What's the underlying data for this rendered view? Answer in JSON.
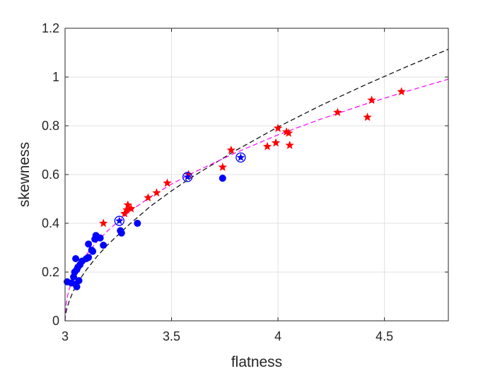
{
  "chart_data": {
    "type": "scatter",
    "title": "",
    "xlabel": "flatness",
    "ylabel": "skewness",
    "xlim": [
      3,
      4.8
    ],
    "ylim": [
      0,
      1.2
    ],
    "x_ticks": [
      3,
      3.5,
      4,
      4.5
    ],
    "x_tick_labels": [
      "3",
      "3.5",
      "4",
      "4.5"
    ],
    "y_ticks": [
      0,
      0.2,
      0.4,
      0.6,
      0.8,
      1,
      1.2
    ],
    "y_tick_labels": [
      "0",
      "0.2",
      "0.4",
      "0.6",
      "0.8",
      "1",
      "1.2"
    ],
    "grid": true,
    "box": true,
    "colors": {
      "circles": "#0000ff",
      "stars": "#ff0000",
      "ringed": "#0000ff",
      "black_curve": "#000000",
      "magenta_curve": "#ff00ff",
      "grid": "#e0e0e0",
      "axes": "#262626"
    },
    "series": [
      {
        "marker": "filled-circle",
        "color": "#0000ff",
        "points": [
          [
            3.01,
            0.16
          ],
          [
            3.03,
            0.155
          ],
          [
            3.04,
            0.18
          ],
          [
            3.045,
            0.2
          ],
          [
            3.05,
            0.15
          ],
          [
            3.055,
            0.14
          ],
          [
            3.055,
            0.21
          ],
          [
            3.05,
            0.255
          ],
          [
            3.06,
            0.22
          ],
          [
            3.065,
            0.165
          ],
          [
            3.07,
            0.23
          ],
          [
            3.08,
            0.245
          ],
          [
            3.1,
            0.255
          ],
          [
            3.11,
            0.26
          ],
          [
            3.11,
            0.315
          ],
          [
            3.125,
            0.29
          ],
          [
            3.13,
            0.285
          ],
          [
            3.14,
            0.335
          ],
          [
            3.145,
            0.35
          ],
          [
            3.15,
            0.345
          ],
          [
            3.165,
            0.34
          ],
          [
            3.18,
            0.31
          ],
          [
            3.26,
            0.37
          ],
          [
            3.265,
            0.36
          ],
          [
            3.34,
            0.4
          ],
          [
            3.74,
            0.585
          ]
        ]
      },
      {
        "marker": "star",
        "color": "#ff0000",
        "points": [
          [
            3.18,
            0.4
          ],
          [
            3.28,
            0.44
          ],
          [
            3.29,
            0.455
          ],
          [
            3.295,
            0.475
          ],
          [
            3.31,
            0.46
          ],
          [
            3.39,
            0.505
          ],
          [
            3.43,
            0.525
          ],
          [
            3.48,
            0.565
          ],
          [
            3.58,
            0.6
          ],
          [
            3.74,
            0.63
          ],
          [
            3.78,
            0.7
          ],
          [
            3.95,
            0.715
          ],
          [
            3.99,
            0.73
          ],
          [
            4.0,
            0.79
          ],
          [
            4.04,
            0.775
          ],
          [
            4.05,
            0.77
          ],
          [
            4.055,
            0.72
          ],
          [
            4.28,
            0.855
          ],
          [
            4.42,
            0.835
          ],
          [
            4.44,
            0.905
          ],
          [
            4.58,
            0.94
          ]
        ]
      },
      {
        "marker": "ringed-star",
        "color": "#0000ff",
        "points": [
          [
            3.255,
            0.41
          ],
          [
            3.575,
            0.59
          ],
          [
            3.825,
            0.67
          ]
        ]
      }
    ],
    "curves": [
      {
        "style": "dashed",
        "color": "#000000",
        "function": "y = 0.7952 * (x - 3)^0.58",
        "x": [
          3.0,
          3.001,
          3.005,
          3.01,
          3.02,
          3.04,
          3.07,
          3.1,
          3.15,
          3.2,
          3.3,
          3.4,
          3.5,
          3.6,
          3.8,
          4.0,
          4.2,
          4.4,
          4.6,
          4.8
        ],
        "y": [
          0.0,
          0.015,
          0.037,
          0.055,
          0.082,
          0.124,
          0.171,
          0.209,
          0.264,
          0.312,
          0.394,
          0.469,
          0.533,
          0.592,
          0.698,
          0.795,
          0.883,
          0.964,
          1.041,
          1.114
        ]
      },
      {
        "style": "dashed",
        "color": "#ff00ff",
        "function": "y = 0.7632 * (x - 3)^0.45",
        "x": [
          3.0,
          3.001,
          3.005,
          3.01,
          3.02,
          3.04,
          3.07,
          3.1,
          3.15,
          3.2,
          3.3,
          3.4,
          3.5,
          3.6,
          3.8,
          4.0,
          4.2,
          4.4,
          4.6,
          4.8
        ],
        "y": [
          0.0,
          0.034,
          0.069,
          0.096,
          0.131,
          0.178,
          0.23,
          0.271,
          0.325,
          0.369,
          0.446,
          0.508,
          0.561,
          0.607,
          0.689,
          0.763,
          0.827,
          0.886,
          0.94,
          0.991
        ]
      }
    ]
  }
}
